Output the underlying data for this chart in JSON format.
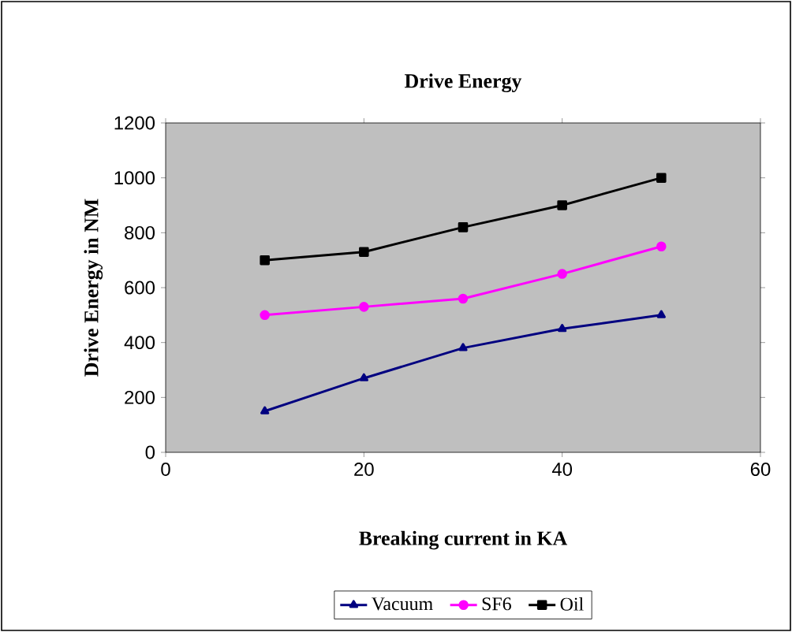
{
  "chart_data": {
    "type": "line",
    "title": "Drive Energy",
    "xlabel": "Breaking current in KA",
    "ylabel": "Drive Energy in NM",
    "x": [
      10,
      20,
      30,
      40,
      50
    ],
    "series": [
      {
        "name": "Vacuum",
        "color": "#000080",
        "marker": "triangle",
        "values": [
          150,
          270,
          380,
          450,
          500
        ]
      },
      {
        "name": "SF6",
        "color": "#ff00ff",
        "marker": "circle",
        "values": [
          500,
          530,
          560,
          650,
          750
        ]
      },
      {
        "name": "Oil",
        "color": "#000000",
        "marker": "square",
        "values": [
          700,
          730,
          820,
          900,
          1000
        ]
      }
    ],
    "xlim": [
      0,
      60
    ],
    "xticks": [
      0,
      20,
      40,
      60
    ],
    "ylim": [
      0,
      1200
    ],
    "yticks": [
      0,
      200,
      400,
      600,
      800,
      1000,
      1200
    ],
    "legend": "bottom"
  }
}
